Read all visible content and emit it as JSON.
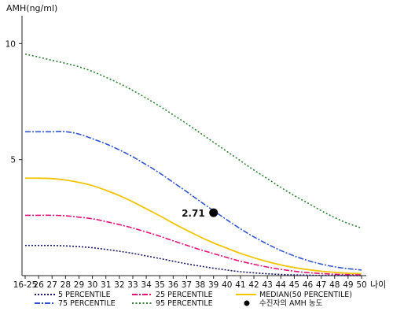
{
  "chart_data": {
    "type": "line",
    "ylabel": "AMH(ng/ml)",
    "xlabel": "나이",
    "ylim": [
      0,
      11.2
    ],
    "yticks": [
      5,
      10
    ],
    "categories": [
      "16-25",
      "26",
      "27",
      "28",
      "29",
      "30",
      "31",
      "32",
      "33",
      "34",
      "35",
      "36",
      "37",
      "38",
      "39",
      "40",
      "41",
      "42",
      "43",
      "44",
      "45",
      "46",
      "47",
      "48",
      "49",
      "50"
    ],
    "series": [
      {
        "name": "95 PERCENTILE",
        "color": "#2e7d32",
        "dash": "2,2.5",
        "values": [
          9.55,
          9.42,
          9.28,
          9.15,
          9.0,
          8.8,
          8.55,
          8.28,
          7.98,
          7.65,
          7.3,
          6.93,
          6.55,
          6.15,
          5.75,
          5.35,
          4.95,
          4.55,
          4.18,
          3.8,
          3.45,
          3.13,
          2.8,
          2.5,
          2.25,
          2.05
        ]
      },
      {
        "name": "75 PERCENTILE",
        "color": "#3355cc",
        "dash": "7,2,2,2",
        "values": [
          6.2,
          6.2,
          6.2,
          6.2,
          6.1,
          5.9,
          5.68,
          5.42,
          5.12,
          4.78,
          4.42,
          4.02,
          3.62,
          3.2,
          2.8,
          2.4,
          2.02,
          1.67,
          1.36,
          1.08,
          0.85,
          0.65,
          0.5,
          0.38,
          0.3,
          0.24
        ]
      },
      {
        "name": "MEDIAN(50 PERCENTILE)",
        "color": "#f2c400",
        "dash": "",
        "values": [
          4.2,
          4.2,
          4.18,
          4.12,
          4.02,
          3.88,
          3.68,
          3.45,
          3.18,
          2.88,
          2.58,
          2.26,
          1.96,
          1.67,
          1.41,
          1.18,
          0.96,
          0.77,
          0.6,
          0.46,
          0.35,
          0.26,
          0.19,
          0.14,
          0.1,
          0.08
        ]
      },
      {
        "name": "25 PERCENTILE",
        "color": "#e0157a",
        "dash": "7,2,2,2",
        "values": [
          2.6,
          2.6,
          2.6,
          2.58,
          2.52,
          2.45,
          2.33,
          2.2,
          2.05,
          1.88,
          1.7,
          1.5,
          1.31,
          1.12,
          0.95,
          0.78,
          0.62,
          0.49,
          0.37,
          0.27,
          0.19,
          0.13,
          0.09,
          0.06,
          0.04,
          0.03
        ]
      },
      {
        "name": "5 PERCENTILE",
        "color": "#1a1a66",
        "dash": "2,2",
        "values": [
          1.3,
          1.3,
          1.3,
          1.28,
          1.25,
          1.2,
          1.13,
          1.05,
          0.96,
          0.85,
          0.74,
          0.62,
          0.51,
          0.41,
          0.32,
          0.24,
          0.17,
          0.12,
          0.08,
          0.05,
          0.03,
          0.02,
          0.01,
          0.01,
          0.0,
          0.0
        ]
      }
    ],
    "marker": {
      "x": "39",
      "y": 2.71,
      "label": "2.71",
      "color": "#000000"
    },
    "legend": {
      "placement": "bottom",
      "items": [
        {
          "label": "5 PERCENTILE",
          "color": "#1a1a66",
          "dash": "2,2",
          "kind": "line"
        },
        {
          "label": "25 PERCENTILE",
          "color": "#e0157a",
          "dash": "7,2,2,2",
          "kind": "line"
        },
        {
          "label": "MEDIAN(50 PERCENTILE)",
          "color": "#f2c400",
          "dash": "",
          "kind": "line"
        },
        {
          "label": "75 PERCENTILE",
          "color": "#3355cc",
          "dash": "7,2,2,2",
          "kind": "line"
        },
        {
          "label": "95 PERCENTILE",
          "color": "#2e7d32",
          "dash": "2,2.5",
          "kind": "line"
        },
        {
          "label": "수진자의 AMH 농도",
          "color": "#000000",
          "dash": "",
          "kind": "dot"
        }
      ]
    }
  }
}
